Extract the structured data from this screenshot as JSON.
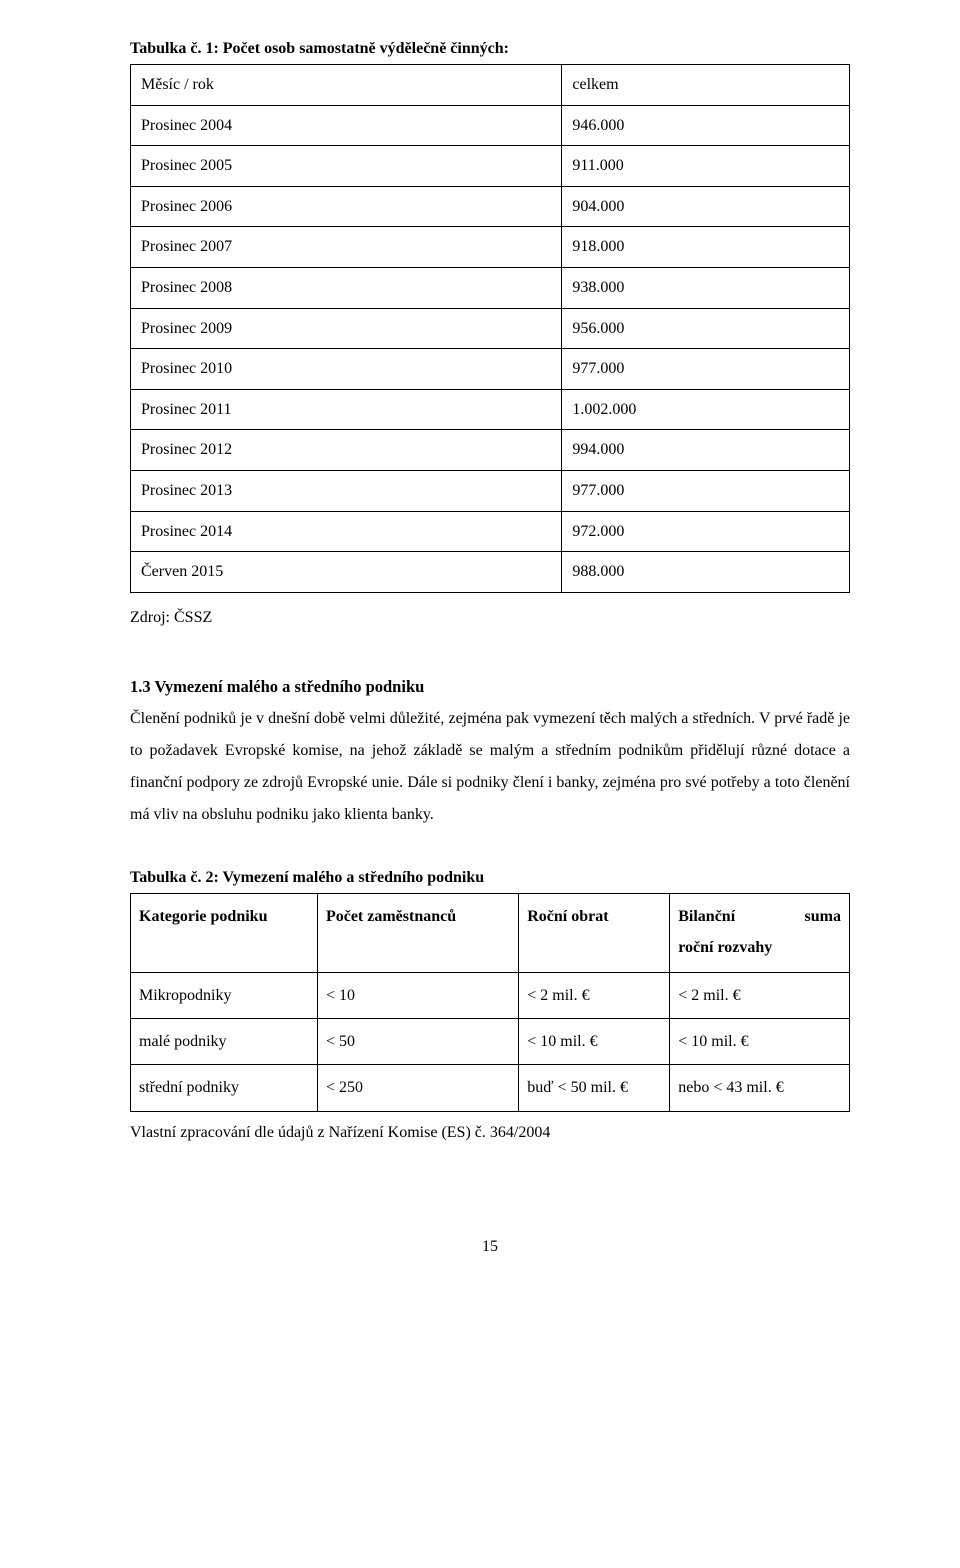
{
  "table1": {
    "caption": "Tabulka č. 1: Počet osob samostatně výdělečně činných:",
    "header": {
      "left": "Měsíc / rok",
      "right": "celkem"
    },
    "rows": [
      {
        "left": "Prosinec 2004",
        "right": "946.000"
      },
      {
        "left": "Prosinec 2005",
        "right": "911.000"
      },
      {
        "left": "Prosinec 2006",
        "right": "904.000"
      },
      {
        "left": "Prosinec 2007",
        "right": "918.000"
      },
      {
        "left": "Prosinec 2008",
        "right": "938.000"
      },
      {
        "left": "Prosinec 2009",
        "right": "956.000"
      },
      {
        "left": "Prosinec 2010",
        "right": "977.000"
      },
      {
        "left": "Prosinec 2011",
        "right": "1.002.000"
      },
      {
        "left": "Prosinec 2012",
        "right": "994.000"
      },
      {
        "left": "Prosinec 2013",
        "right": "977.000"
      },
      {
        "left": "Prosinec 2014",
        "right": "972.000"
      },
      {
        "left": "Červen 2015",
        "right": "988.000"
      }
    ],
    "source": "Zdroj: ČSSZ"
  },
  "section": {
    "heading": "1.3 Vymezení malého a středního podniku",
    "paragraph": "Členění podniků je v dnešní době velmi důležité, zejména pak vymezení těch malých a středních. V prvé řadě je to požadavek Evropské komise, na jehož základě se malým a středním podnikům přidělují různé dotace a finanční podpory ze zdrojů Evropské unie. Dále si podniky člení i banky, zejména pro své potřeby a toto členění má vliv na obsluhu podniku jako klienta banky."
  },
  "table2": {
    "caption": "Tabulka č. 2: Vymezení malého a středního podniku",
    "header": {
      "c1": "Kategorie podniku",
      "c2": "Počet zaměstnanců",
      "c3": "Roční obrat",
      "c4_l1a": "Bilanční",
      "c4_l1b": "suma",
      "c4_l2": "roční rozvahy"
    },
    "rows": [
      {
        "c1": "Mikropodniky",
        "c2": "< 10",
        "c3": "< 2 mil. €",
        "c4": "< 2 mil. €"
      },
      {
        "c1": "malé podniky",
        "c2": "< 50",
        "c3": "< 10 mil. €",
        "c4": "< 10 mil. €"
      },
      {
        "c1": "střední podniky",
        "c2": "< 250",
        "c3": "buď < 50 mil. €",
        "c4": "nebo < 43 mil. €"
      }
    ],
    "source": "Vlastní zpracování dle údajů z Nařízení Komise (ES) č. 364/2004"
  },
  "page_number": "15"
}
